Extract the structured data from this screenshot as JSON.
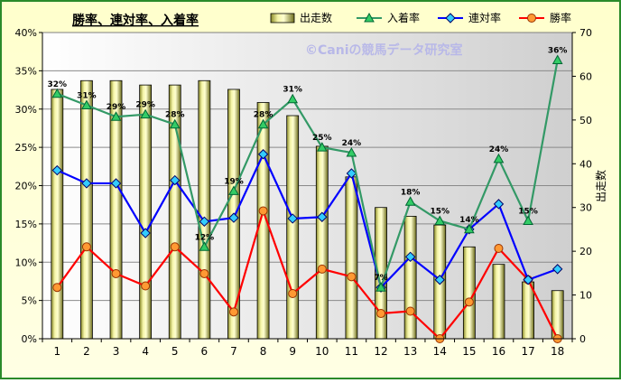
{
  "chart_data": {
    "type": "bar+line",
    "title": "勝率、連対率、入着率",
    "watermark": "©Caniの競馬データ研究室",
    "categories": [
      "1",
      "2",
      "3",
      "4",
      "5",
      "6",
      "7",
      "8",
      "9",
      "10",
      "11",
      "12",
      "13",
      "14",
      "15",
      "16",
      "17",
      "18"
    ],
    "bar_series": {
      "name": "出走数",
      "axis": "right",
      "values": [
        57,
        59,
        59,
        58,
        58,
        59,
        57,
        54,
        51,
        44,
        37,
        30,
        28,
        26,
        21,
        17,
        13,
        11
      ],
      "color": "#e6e68a"
    },
    "series": [
      {
        "name": "入着率",
        "axis": "left",
        "color": "#339966",
        "marker": "triangle",
        "values": [
          32.0,
          30.5,
          29.0,
          29.3,
          28.0,
          12.0,
          19.3,
          28.0,
          31.3,
          25.0,
          24.3,
          6.7,
          17.9,
          15.4,
          14.3,
          23.5,
          15.4,
          36.4
        ],
        "labels": [
          "32%",
          "31%",
          "29%",
          "29%",
          "28%",
          "12%",
          "19%",
          "28%",
          "31%",
          "25%",
          "24%",
          "7%",
          "18%",
          "15%",
          "14%",
          "24%",
          "15%",
          "36%"
        ]
      },
      {
        "name": "連対率",
        "axis": "left",
        "color": "#0000ff",
        "marker": "diamond",
        "values": [
          22.0,
          20.3,
          20.3,
          13.8,
          20.7,
          15.3,
          15.8,
          24.1,
          15.7,
          15.9,
          21.6,
          6.7,
          10.7,
          7.7,
          14.3,
          17.6,
          7.7,
          9.1
        ]
      },
      {
        "name": "勝率",
        "axis": "left",
        "color": "#ff0000",
        "marker": "circle",
        "values": [
          6.7,
          12.0,
          8.5,
          6.9,
          12.0,
          8.5,
          3.5,
          16.7,
          5.9,
          9.1,
          8.1,
          3.3,
          3.6,
          0.0,
          4.8,
          11.8,
          7.7,
          0.0
        ]
      }
    ],
    "y_left": {
      "min": 0,
      "max": 40,
      "step": 5,
      "unit": "%"
    },
    "y_right": {
      "min": 0,
      "max": 70,
      "step": 10,
      "label": "出走数"
    },
    "legend_position": "top-right",
    "grid": true
  }
}
